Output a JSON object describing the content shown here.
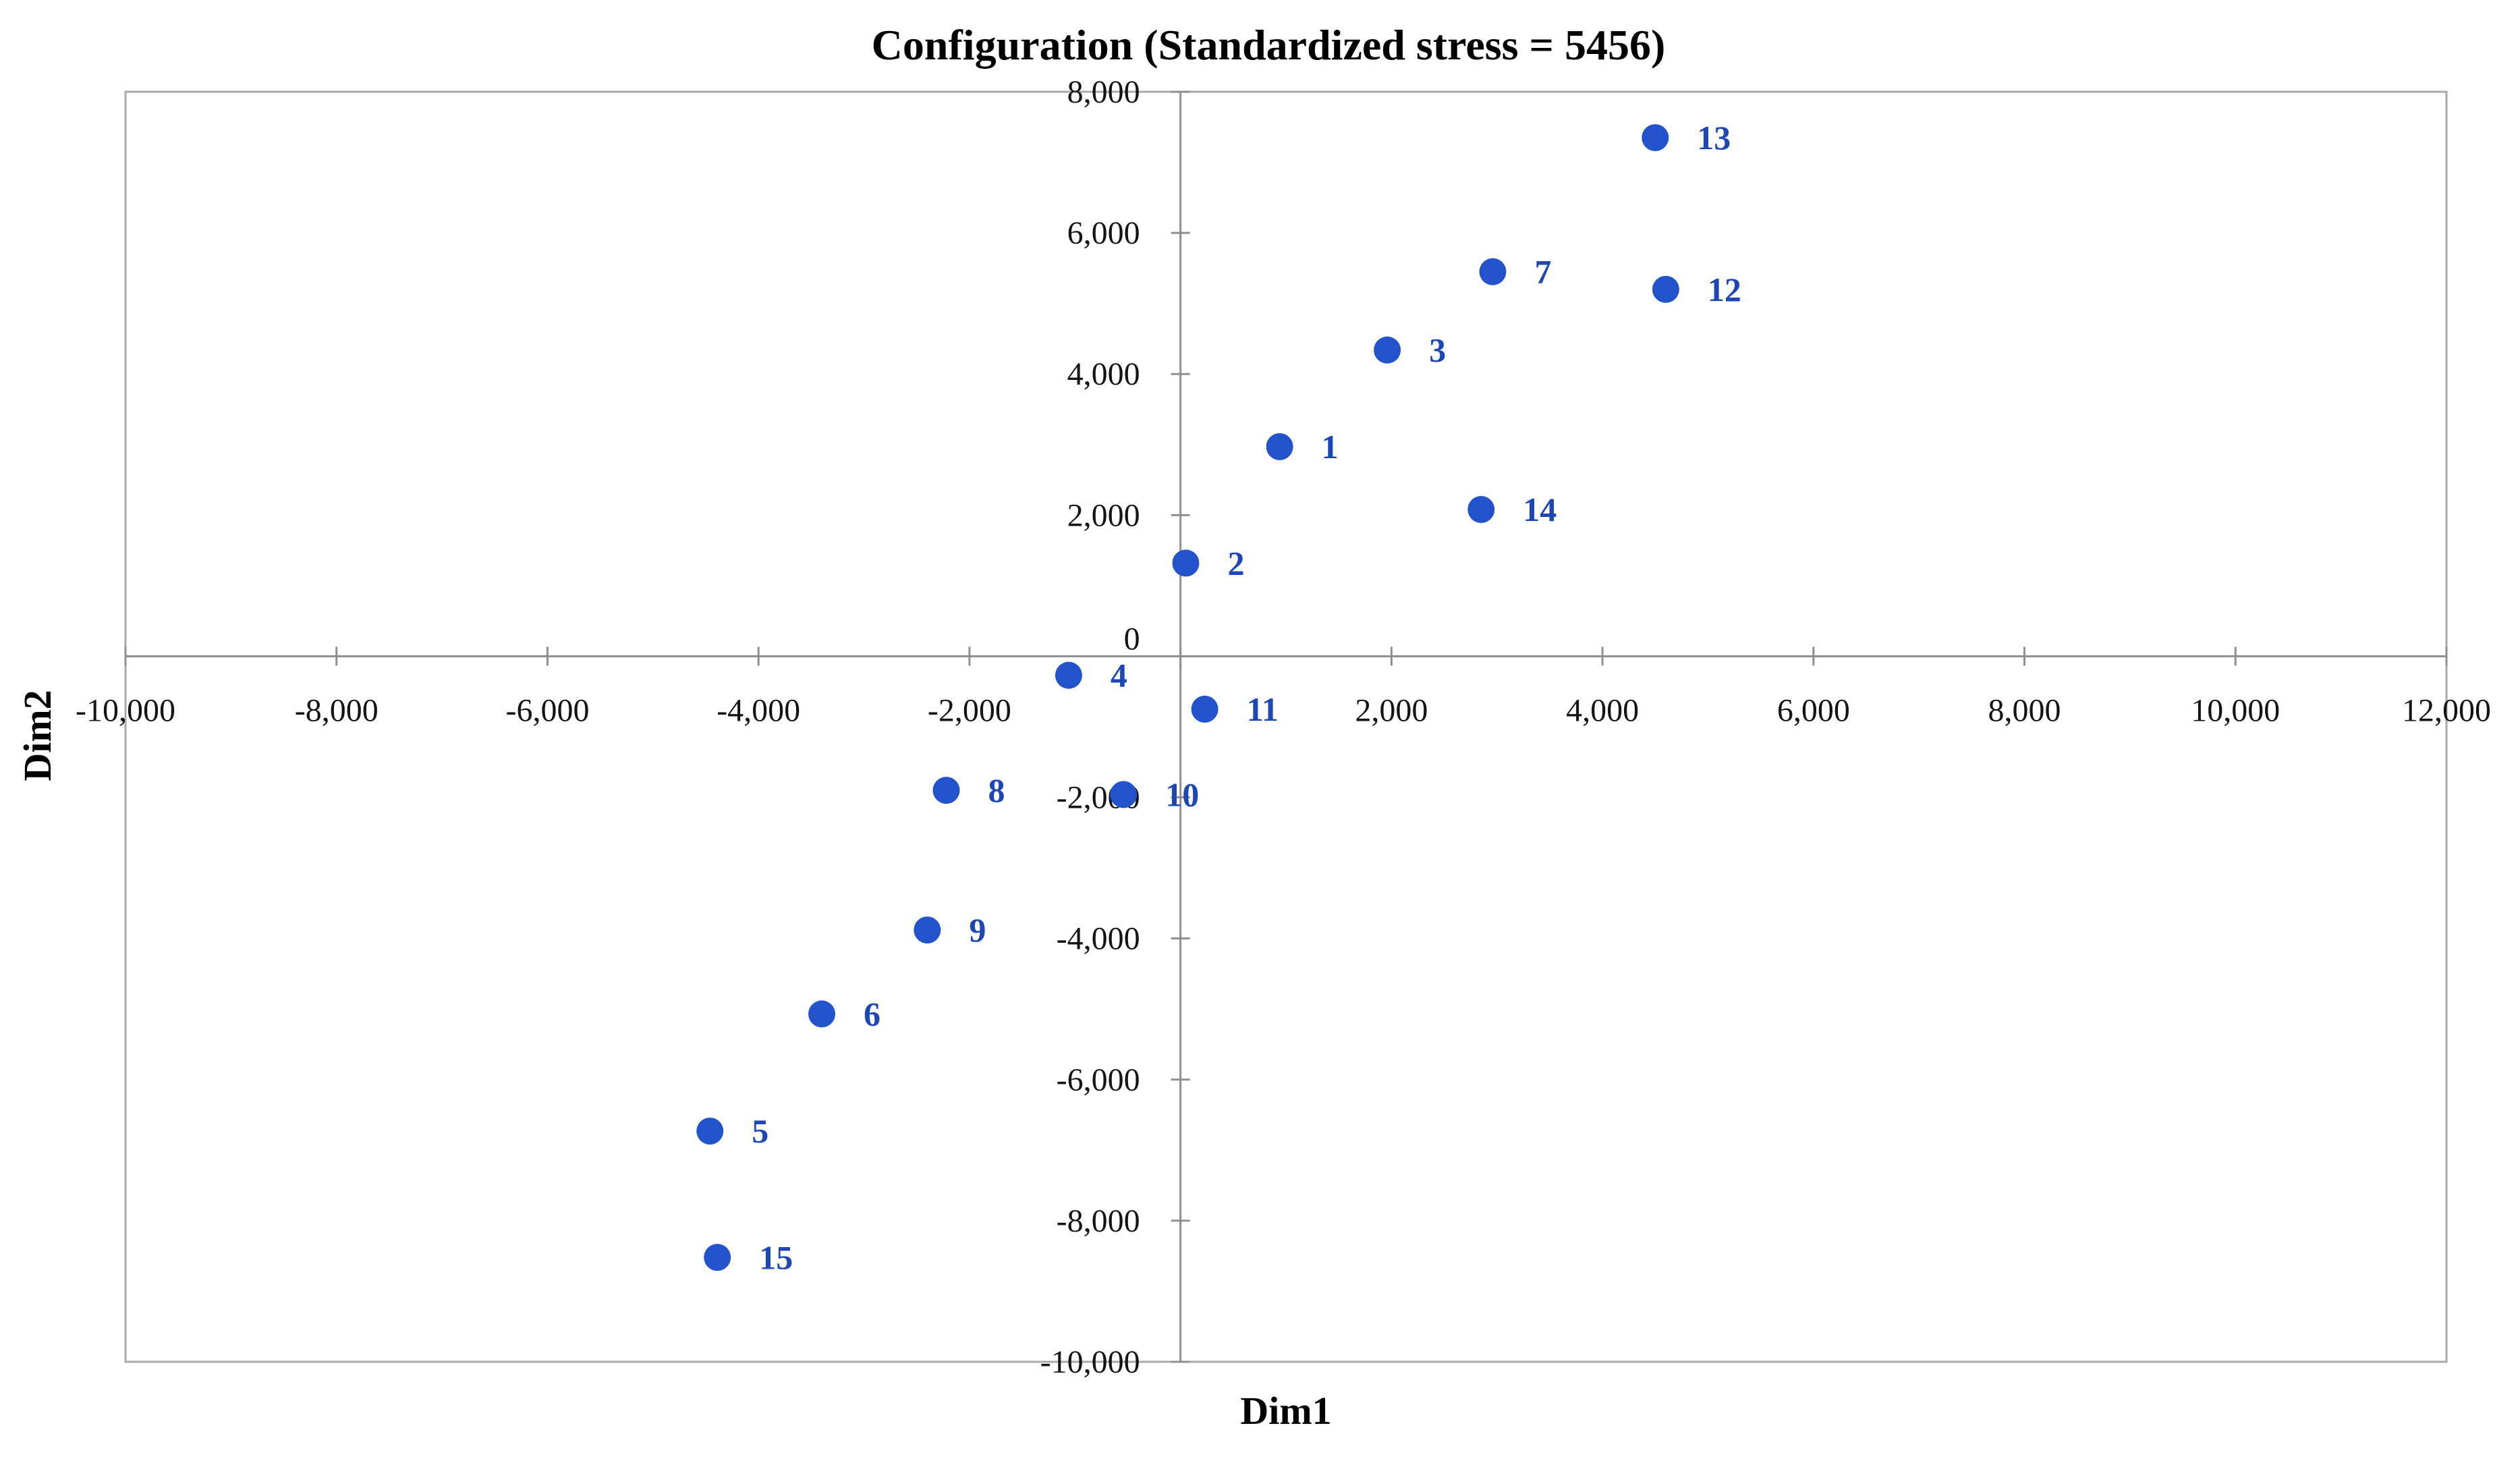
{
  "chart_data": {
    "type": "scatter",
    "title": "Configuration (Standardized stress = 5456)",
    "xlabel": "Dim1",
    "ylabel": "Dim2",
    "xlim": [
      -10000,
      12000
    ],
    "ylim": [
      -10000,
      8000
    ],
    "x_tick_step": 2000,
    "y_tick_step": 2000,
    "grid": false,
    "legend": "none",
    "point_color": "#2353CB",
    "point_label_color": "#1D47B5",
    "border_color": "#A8A8A8",
    "axis_color": "#8F8F8F",
    "x_ticks": [
      {
        "v": -10000,
        "label": "-10,000"
      },
      {
        "v": -8000,
        "label": "-8,000"
      },
      {
        "v": -6000,
        "label": "-6,000"
      },
      {
        "v": -4000,
        "label": "-4,000"
      },
      {
        "v": -2000,
        "label": "-2,000"
      },
      {
        "v": 0,
        "label": ""
      },
      {
        "v": 2000,
        "label": "2,000"
      },
      {
        "v": 4000,
        "label": "4,000"
      },
      {
        "v": 6000,
        "label": "6,000"
      },
      {
        "v": 8000,
        "label": "8,000"
      },
      {
        "v": 10000,
        "label": "10,000"
      },
      {
        "v": 12000,
        "label": "12,000"
      }
    ],
    "y_ticks": [
      {
        "v": 8000,
        "label": "8,000"
      },
      {
        "v": 6000,
        "label": "6,000"
      },
      {
        "v": 4000,
        "label": "4,000"
      },
      {
        "v": 2000,
        "label": "2,000"
      },
      {
        "v": 0,
        "label": "0"
      },
      {
        "v": -2000,
        "label": "-2,000"
      },
      {
        "v": -4000,
        "label": "-4,000"
      },
      {
        "v": -6000,
        "label": "-6,000"
      },
      {
        "v": -8000,
        "label": "-8,000"
      },
      {
        "v": -10000,
        "label": "-10,000"
      }
    ],
    "points": [
      {
        "label": "1",
        "x": 940,
        "y": 2970
      },
      {
        "label": "2",
        "x": 50,
        "y": 1320
      },
      {
        "label": "3",
        "x": 1960,
        "y": 4340
      },
      {
        "label": "4",
        "x": -1060,
        "y": -270
      },
      {
        "label": "5",
        "x": -4460,
        "y": -6730
      },
      {
        "label": "6",
        "x": -3400,
        "y": -5070
      },
      {
        "label": "7",
        "x": 2960,
        "y": 5450
      },
      {
        "label": "8",
        "x": -2220,
        "y": -1900
      },
      {
        "label": "9",
        "x": -2400,
        "y": -3880
      },
      {
        "label": "10",
        "x": -540,
        "y": -1960
      },
      {
        "label": "11",
        "x": 230,
        "y": -750
      },
      {
        "label": "12",
        "x": 4600,
        "y": 5200
      },
      {
        "label": "13",
        "x": 4500,
        "y": 7350
      },
      {
        "label": "14",
        "x": 2850,
        "y": 2080
      },
      {
        "label": "15",
        "x": -4390,
        "y": -8520
      }
    ]
  }
}
